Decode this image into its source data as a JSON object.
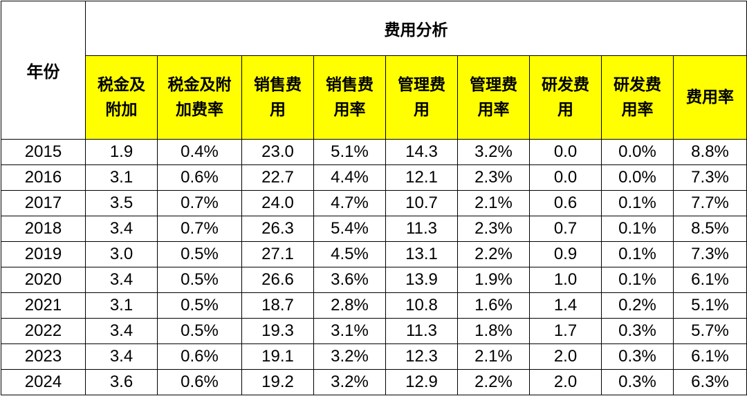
{
  "table": {
    "year_header": "年份",
    "group_header": "费用分析",
    "columns": [
      "税金及\n附加",
      "税金及附\n加费率",
      "销售费\n用",
      "销售费\n用率",
      "管理费\n用",
      "管理费\n用率",
      "研发费\n用",
      "研发费\n用率",
      "费用率"
    ],
    "rows": [
      {
        "year": "2015",
        "cells": [
          "1.9",
          "0.4%",
          "23.0",
          "5.1%",
          "14.3",
          "3.2%",
          "0.0",
          "0.0%",
          "8.8%"
        ]
      },
      {
        "year": "2016",
        "cells": [
          "3.1",
          "0.6%",
          "22.7",
          "4.4%",
          "12.1",
          "2.3%",
          "0.0",
          "0.0%",
          "7.3%"
        ]
      },
      {
        "year": "2017",
        "cells": [
          "3.5",
          "0.7%",
          "24.0",
          "4.7%",
          "10.7",
          "2.1%",
          "0.6",
          "0.1%",
          "7.7%"
        ]
      },
      {
        "year": "2018",
        "cells": [
          "3.4",
          "0.7%",
          "26.3",
          "5.4%",
          "11.3",
          "2.3%",
          "0.7",
          "0.1%",
          "8.5%"
        ]
      },
      {
        "year": "2019",
        "cells": [
          "3.0",
          "0.5%",
          "27.1",
          "4.5%",
          "13.1",
          "2.2%",
          "0.9",
          "0.1%",
          "7.3%"
        ]
      },
      {
        "year": "2020",
        "cells": [
          "3.4",
          "0.5%",
          "26.6",
          "3.6%",
          "13.9",
          "1.9%",
          "1.0",
          "0.1%",
          "6.1%"
        ]
      },
      {
        "year": "2021",
        "cells": [
          "3.1",
          "0.5%",
          "18.7",
          "2.8%",
          "10.8",
          "1.6%",
          "1.4",
          "0.2%",
          "5.1%"
        ]
      },
      {
        "year": "2022",
        "cells": [
          "3.4",
          "0.5%",
          "19.3",
          "3.1%",
          "11.3",
          "1.8%",
          "1.7",
          "0.3%",
          "5.7%"
        ]
      },
      {
        "year": "2023",
        "cells": [
          "3.4",
          "0.6%",
          "19.1",
          "3.2%",
          "12.3",
          "2.1%",
          "2.0",
          "0.3%",
          "6.1%"
        ]
      },
      {
        "year": "2024",
        "cells": [
          "3.6",
          "0.6%",
          "19.2",
          "3.2%",
          "12.9",
          "2.2%",
          "2.0",
          "0.3%",
          "6.3%"
        ]
      }
    ]
  },
  "colors": {
    "header_fill": "#ffff00",
    "border": "#000000"
  }
}
